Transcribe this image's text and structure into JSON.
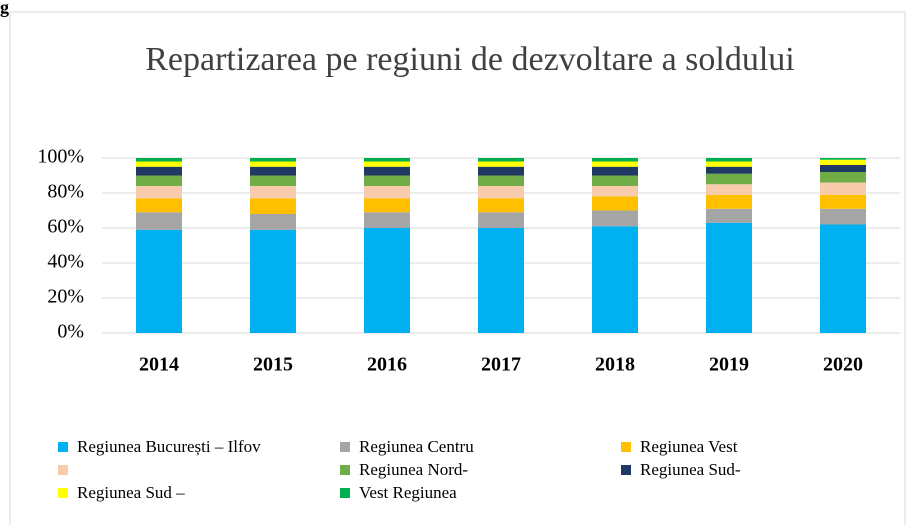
{
  "caption": "g",
  "chart_data": {
    "type": "stacked_bar",
    "title": "Repartizarea pe regiuni de dezvoltare a soldului",
    "categories": [
      "2014",
      "2015",
      "2016",
      "2017",
      "2018",
      "2019",
      "2020"
    ],
    "series": [
      {
        "name": "Regiunea București – Ilfov",
        "color": "#00b0f0",
        "values": [
          59,
          59,
          60,
          60,
          61,
          63,
          62
        ]
      },
      {
        "name": "Regiunea Centru",
        "color": "#a5a5a5",
        "values": [
          10,
          9,
          9,
          9,
          9,
          8,
          9
        ]
      },
      {
        "name": "Regiunea Vest",
        "color": "#ffc000",
        "values": [
          8,
          9,
          8,
          8,
          8,
          8,
          8
        ]
      },
      {
        "name": null,
        "color": "#f8cbad",
        "values": [
          7,
          7,
          7,
          7,
          6,
          6,
          7
        ]
      },
      {
        "name": "Regiunea Nord-",
        "color": "#70ad47",
        "values": [
          6,
          6,
          6,
          6,
          6,
          6,
          6
        ]
      },
      {
        "name": "Regiunea Sud-",
        "color": "#203864",
        "values": [
          5,
          5,
          5,
          5,
          5,
          4,
          4
        ]
      },
      {
        "name": "Regiunea Sud –",
        "color": "#ffff00",
        "values": [
          3,
          3,
          3,
          3,
          3,
          3,
          3
        ]
      },
      {
        "name": "Vest  Regiunea",
        "color": "#00b050",
        "values": [
          2,
          2,
          2,
          2,
          2,
          2,
          1
        ]
      }
    ],
    "ylim": [
      0,
      100
    ],
    "yticks": [
      {
        "value": 0,
        "label": "0%"
      },
      {
        "value": 20,
        "label": "20%"
      },
      {
        "value": 40,
        "label": "40%"
      },
      {
        "value": 60,
        "label": "60%"
      },
      {
        "value": 80,
        "label": "80%"
      },
      {
        "value": 100,
        "label": "100%"
      }
    ],
    "grid": true
  }
}
